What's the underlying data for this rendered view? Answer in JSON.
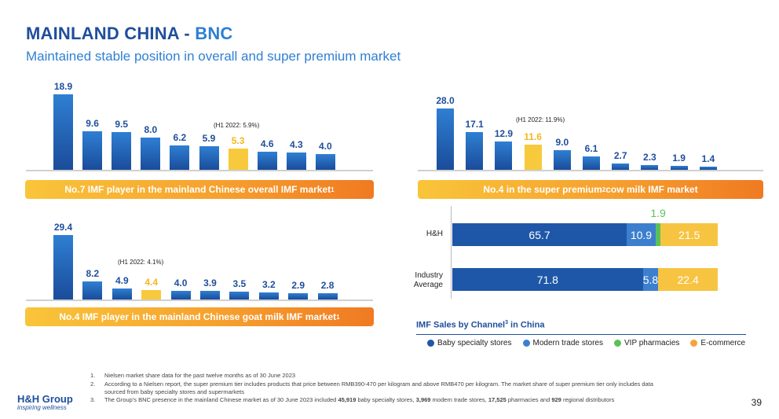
{
  "header": {
    "title_main": "MAINLAND CHINA - ",
    "title_accent": "BNC",
    "subtitle": "Maintained stable position in overall and super premium market"
  },
  "chart_data": [
    {
      "type": "bar",
      "values": [
        18.9,
        9.6,
        9.5,
        8.0,
        6.2,
        5.9,
        5.3,
        4.6,
        4.3,
        4.0
      ],
      "value_labels": [
        "18.9",
        "9.6",
        "9.5",
        "8.0",
        "6.2",
        "5.9",
        "5.3",
        "4.6",
        "4.3",
        "4.0"
      ],
      "highlight_index": 6,
      "annotation": "(H1 2022: 5.9%)",
      "banner": "No.7 IMF player in the mainland Chinese overall IMF market",
      "banner_sup": "1"
    },
    {
      "type": "bar",
      "values": [
        28.0,
        17.1,
        12.9,
        11.6,
        9.0,
        6.1,
        2.7,
        2.3,
        1.9,
        1.4
      ],
      "value_labels": [
        "28.0",
        "17.1",
        "12.9",
        "11.6",
        "9.0",
        "6.1",
        "2.7",
        "2.3",
        "1.9",
        "1.4"
      ],
      "highlight_index": 3,
      "annotation": "(H1 2022: 11.9%)",
      "banner_pre": "No.4 in the super premium",
      "banner_sup": "2",
      "banner_post": " cow milk IMF market"
    },
    {
      "type": "bar",
      "values": [
        29.4,
        8.2,
        4.9,
        4.4,
        4.0,
        3.9,
        3.5,
        3.2,
        2.9,
        2.8
      ],
      "value_labels": [
        "29.4",
        "8.2",
        "4.9",
        "4.4",
        "4.0",
        "3.9",
        "3.5",
        "3.2",
        "2.9",
        "2.8"
      ],
      "highlight_index": 3,
      "annotation": "(H1 2022: 4.1%)",
      "banner": "No.4 IMF player in the mainland Chinese goat milk IMF market",
      "banner_sup": "1"
    },
    {
      "type": "bar",
      "orientation": "horizontal",
      "stacked": true,
      "title_pre": "IMF Sales by Channel",
      "title_sup": "3",
      "title_post": " in China",
      "categories": [
        "H&H",
        "Industry Average"
      ],
      "category_lines": [
        [
          "H&H"
        ],
        [
          "Industry",
          "Average"
        ]
      ],
      "series": [
        {
          "name": "Baby specialty stores",
          "values": [
            65.7,
            71.8
          ],
          "labels": [
            "65.7",
            "71.8"
          ],
          "color": "#1f57a8"
        },
        {
          "name": "Modern trade stores",
          "values": [
            10.9,
            5.8
          ],
          "labels": [
            "10.9",
            "5.8"
          ],
          "color": "#3d7fcf"
        },
        {
          "name": "VIP pharmacies",
          "values": [
            1.9,
            0
          ],
          "labels": [
            "1.9",
            ""
          ],
          "color": "#5cc05a"
        },
        {
          "name": "E-commerce",
          "values": [
            21.5,
            22.4
          ],
          "labels": [
            "21.5",
            "22.4"
          ],
          "color": "#f7c442"
        }
      ],
      "legend_position": "bottom"
    }
  ],
  "colors": {
    "bar_blue_top": "#2f7fd3",
    "bar_blue_bottom": "#1a4c9a",
    "highlight": "#f7c93c",
    "title_dark": "#1f4e9c",
    "title_light": "#2f7fd3"
  },
  "footnotes": [
    {
      "num": "1.",
      "text": "Nielsen market share data for the past twelve months as of 30 June 2023"
    },
    {
      "num": "2.",
      "text": "According to a Nielsen report, the super premium tier includes products that price between RMB390-470 per kilogram and above RMB470 per kilogram. The market share of super premium tier only includes data"
    },
    {
      "num": "",
      "text": "sourced from baby specialty stores and supermarkets"
    },
    {
      "num": "3.",
      "text_pre": "The Group's BNC presence in the mainland Chinese market as of 30 June 2023 included ",
      "n1": "45,919",
      "t1": " baby specialty stores, ",
      "n2": "3,969",
      "t2": " modern trade stores, ",
      "n3": "17,525",
      "t3": " pharmacies and ",
      "n4": "929",
      "t4": " regional distributors"
    }
  ],
  "logo": {
    "name": "H&H Group",
    "tagline": "inspiring wellness"
  },
  "page_number": "39"
}
